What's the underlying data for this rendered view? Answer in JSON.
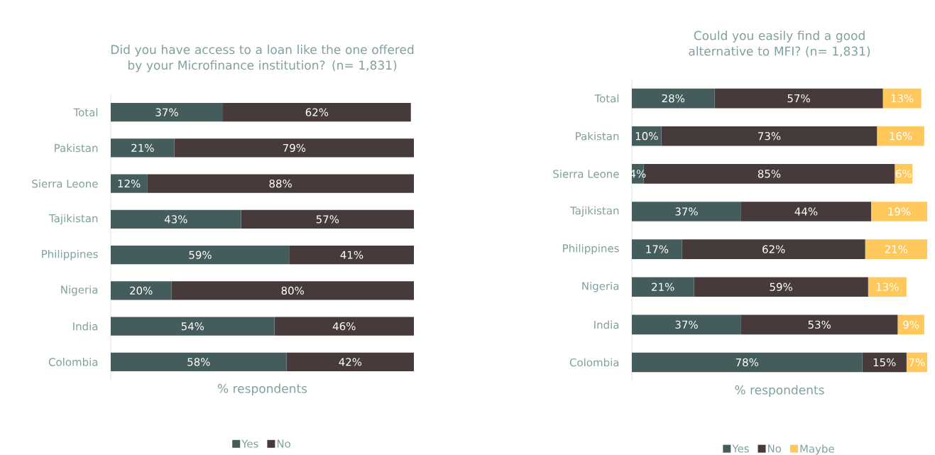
{
  "chart_data": [
    {
      "type": "bar",
      "orientation": "horizontal",
      "stacked": true,
      "title": "Did you have access to a loan like the one offered by your Microfinance institution? (n= 1,831)",
      "xlabel": "% respondents",
      "legend": "bottom",
      "categories": [
        "Total",
        "Pakistan",
        "Sierra Leone",
        "Tajikistan",
        "Philippines",
        "Nigeria",
        "India",
        "Colombia"
      ],
      "series": [
        {
          "name": "Yes",
          "color": "#445d5c",
          "values": [
            37,
            21,
            12,
            43,
            59,
            20,
            54,
            58
          ],
          "value_labels": [
            "37%",
            "21%",
            "12%",
            "43%",
            "59%",
            "20%",
            "54%",
            "58%"
          ]
        },
        {
          "name": "No",
          "color": "#463b3a",
          "values": [
            62,
            79,
            88,
            57,
            41,
            80,
            46,
            42
          ],
          "value_labels": [
            "62%",
            "79%",
            "88%",
            "57%",
            "41%",
            "80%",
            "46%",
            "42%"
          ]
        }
      ]
    },
    {
      "type": "bar",
      "orientation": "horizontal",
      "stacked": true,
      "title": "Could you easily find a good alternative to MFI? (n= 1,831)",
      "xlabel": "% respondents",
      "legend": "bottom",
      "categories": [
        "Total",
        "Pakistan",
        "Sierra Leone",
        "Tajikistan",
        "Philippines",
        "Nigeria",
        "India",
        "Colombia"
      ],
      "series": [
        {
          "name": "Yes",
          "color": "#445d5c",
          "values": [
            28,
            10,
            4,
            37,
            17,
            21,
            37,
            78
          ],
          "value_labels": [
            "28%",
            "10%",
            "4%",
            "37%",
            "17%",
            "21%",
            "37%",
            "78%"
          ]
        },
        {
          "name": "No",
          "color": "#463b3a",
          "values": [
            57,
            73,
            85,
            44,
            62,
            59,
            53,
            15
          ],
          "value_labels": [
            "57%",
            "73%",
            "85%",
            "44%",
            "62%",
            "59%",
            "53%",
            "15%"
          ]
        },
        {
          "name": "Maybe",
          "color": "#ffc85c",
          "values": [
            13,
            16,
            6,
            19,
            21,
            13,
            9,
            7
          ],
          "value_labels": [
            "13%",
            "16%",
            "6%",
            "19%",
            "21%",
            "13%",
            "9%",
            "7%"
          ]
        }
      ]
    }
  ]
}
